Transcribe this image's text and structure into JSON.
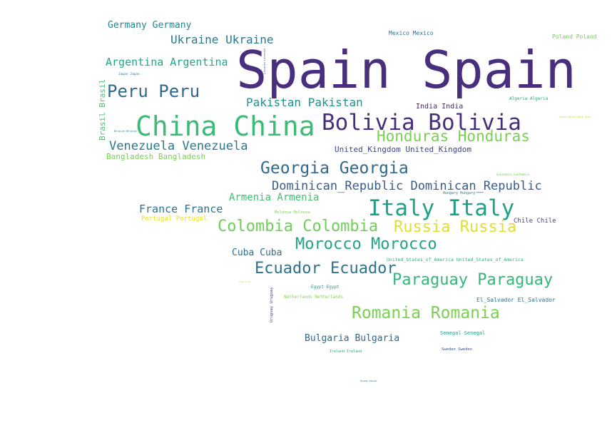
{
  "words": [
    {
      "text": "Spain Spain",
      "color": "#472f7d"
    },
    {
      "text": "China China",
      "color": "#3bbb75"
    },
    {
      "text": "Bolivia Bolivia",
      "color": "#472f7d"
    },
    {
      "text": "Italy Italy",
      "color": "#1fa187"
    },
    {
      "text": "Honduras Honduras",
      "color": "#7ad151"
    },
    {
      "text": "Peru Peru",
      "color": "#31688e"
    },
    {
      "text": "Georgia Georgia",
      "color": "#31688e"
    },
    {
      "text": "Romania Romania",
      "color": "#7ad151"
    },
    {
      "text": "Colombia Colombia",
      "color": "#6ece58"
    },
    {
      "text": "Russia Russia",
      "color": "#e1dd37"
    },
    {
      "text": "Morocco Morocco",
      "color": "#20a486"
    },
    {
      "text": "Ecuador Ecuador",
      "color": "#2c728e"
    },
    {
      "text": "Paraguay Paraguay",
      "color": "#35b779"
    },
    {
      "text": "Dominican_Republic Dominican_Republic",
      "color": "#365c8d"
    },
    {
      "text": "Venezuela Venezuela",
      "color": "#2a788e"
    },
    {
      "text": "Ukraine Ukraine",
      "color": "#2a788e"
    },
    {
      "text": "Argentina Argentina",
      "color": "#22a884"
    },
    {
      "text": "Pakistan Pakistan",
      "color": "#21918c"
    },
    {
      "text": "France France",
      "color": "#2c728e"
    },
    {
      "text": "Armenia Armenia",
      "color": "#44bf70"
    },
    {
      "text": "Bulgaria Bulgaria",
      "color": "#31688e"
    },
    {
      "text": "Germany Germany",
      "color": "#25848e"
    },
    {
      "text": "Cuba Cuba",
      "color": "#2e6e8e"
    },
    {
      "text": "Bangladesh Bangladesh",
      "color": "#7ad151"
    },
    {
      "text": "United_Kingdom United_Kingdom",
      "color": "#414487"
    },
    {
      "text": "India India",
      "color": "#482475"
    },
    {
      "text": "Brasil Brasil",
      "color": "#4ac16d"
    },
    {
      "text": "Portugal Portugal",
      "color": "#e5e419"
    },
    {
      "text": "Chile Chile",
      "color": "#3e4a89"
    },
    {
      "text": "El_Salvador El_Salvador",
      "color": "#2d708e"
    },
    {
      "text": "Mexico Mexico",
      "color": "#2c728e"
    },
    {
      "text": "Poland Poland",
      "color": "#6ece58"
    },
    {
      "text": "Senegal Senegal",
      "color": "#1f9e89"
    },
    {
      "text": "United_States_of_America United_States_of_America",
      "color": "#27ad81"
    },
    {
      "text": "Algeria Algeria",
      "color": "#23a983"
    },
    {
      "text": "Egypt Egypt",
      "color": "#1f9a8a"
    },
    {
      "text": "Netherlands Netherlands",
      "color": "#86d549"
    },
    {
      "text": "Moldova Moldova",
      "color": "#7fd34e"
    },
    {
      "text": "Sweden Sweden",
      "color": "#3b528b"
    },
    {
      "text": "Ireland Ireland",
      "color": "#22a884"
    },
    {
      "text": "Hungary Hungary",
      "color": "#2a788e"
    },
    {
      "text": "Uruguay Uruguay",
      "color": "#443a83"
    },
    {
      "text": "Guatemala Guatemala",
      "color": "#6ece58"
    },
    {
      "text": "Costa_Rica Costa_Rica",
      "color": "#b5de2b"
    },
    {
      "text": "Japan Japan",
      "color": "#2a788e"
    },
    {
      "text": "Belgium Belgium",
      "color": "#21918c"
    },
    {
      "text": "Lituania Lituania",
      "color": "#3e4a89"
    },
    {
      "text": "Iran Iran",
      "color": "#c2df23"
    },
    {
      "text": "Panama Panama",
      "color": "#2c728e"
    }
  ]
}
